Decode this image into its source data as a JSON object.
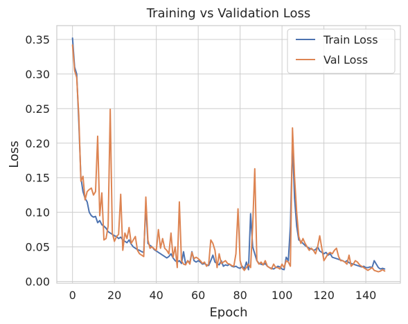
{
  "chart_data": {
    "type": "line",
    "title": "Training vs Validation Loss",
    "xlabel": "Epoch",
    "ylabel": "Loss",
    "xlim": [
      -7.5,
      156.5
    ],
    "ylim": [
      -0.0025,
      0.37
    ],
    "xticks": [
      0,
      20,
      40,
      60,
      80,
      100,
      120,
      140
    ],
    "yticks": [
      0.0,
      0.05,
      0.1,
      0.15,
      0.2,
      0.25,
      0.3,
      0.35
    ],
    "ytick_labels": [
      "0.00",
      "0.05",
      "0.10",
      "0.15",
      "0.20",
      "0.25",
      "0.30",
      "0.35"
    ],
    "grid": true,
    "legend_position": "top-right",
    "series": [
      {
        "name": "Train Loss",
        "color": "#4c72b0",
        "x": [
          0,
          1,
          2,
          3,
          4,
          5,
          6,
          7,
          8,
          9,
          10,
          11,
          12,
          13,
          14,
          15,
          16,
          17,
          18,
          19,
          20,
          21,
          22,
          23,
          24,
          25,
          26,
          27,
          28,
          29,
          30,
          31,
          32,
          33,
          34,
          35,
          36,
          37,
          38,
          39,
          40,
          41,
          42,
          43,
          44,
          45,
          46,
          47,
          48,
          49,
          50,
          51,
          52,
          53,
          54,
          55,
          56,
          57,
          58,
          59,
          60,
          61,
          62,
          63,
          64,
          65,
          66,
          67,
          68,
          69,
          70,
          71,
          72,
          73,
          74,
          75,
          76,
          77,
          78,
          79,
          80,
          81,
          82,
          83,
          84,
          85,
          86,
          87,
          88,
          89,
          90,
          91,
          92,
          93,
          94,
          95,
          96,
          97,
          98,
          99,
          100,
          101,
          102,
          103,
          104,
          105,
          106,
          107,
          108,
          109,
          110,
          111,
          112,
          113,
          114,
          115,
          116,
          117,
          118,
          119,
          120,
          121,
          122,
          123,
          124,
          125,
          126,
          127,
          128,
          129,
          130,
          131,
          132,
          133,
          134,
          135,
          136,
          137,
          138,
          139,
          140,
          141,
          142,
          143,
          144,
          145,
          146,
          147,
          148,
          149
        ],
        "values": [
          0.352,
          0.31,
          0.3,
          0.23,
          0.15,
          0.13,
          0.12,
          0.115,
          0.1,
          0.095,
          0.093,
          0.094,
          0.085,
          0.088,
          0.082,
          0.08,
          0.077,
          0.072,
          0.07,
          0.068,
          0.066,
          0.065,
          0.062,
          0.064,
          0.06,
          0.058,
          0.056,
          0.06,
          0.054,
          0.05,
          0.048,
          0.046,
          0.045,
          0.043,
          0.042,
          0.11,
          0.055,
          0.052,
          0.05,
          0.046,
          0.044,
          0.042,
          0.04,
          0.038,
          0.036,
          0.034,
          0.036,
          0.04,
          0.034,
          0.03,
          0.028,
          0.03,
          0.026,
          0.043,
          0.025,
          0.03,
          0.027,
          0.043,
          0.03,
          0.028,
          0.03,
          0.028,
          0.025,
          0.026,
          0.024,
          0.023,
          0.03,
          0.038,
          0.028,
          0.026,
          0.024,
          0.03,
          0.022,
          0.024,
          0.023,
          0.025,
          0.022,
          0.021,
          0.022,
          0.02,
          0.019,
          0.022,
          0.018,
          0.028,
          0.017,
          0.098,
          0.05,
          0.04,
          0.03,
          0.026,
          0.025,
          0.024,
          0.026,
          0.022,
          0.02,
          0.019,
          0.018,
          0.02,
          0.022,
          0.021,
          0.018,
          0.017,
          0.035,
          0.03,
          0.08,
          0.201,
          0.12,
          0.08,
          0.06,
          0.058,
          0.055,
          0.052,
          0.05,
          0.048,
          0.047,
          0.045,
          0.046,
          0.05,
          0.044,
          0.042,
          0.04,
          0.042,
          0.038,
          0.04,
          0.035,
          0.034,
          0.033,
          0.032,
          0.031,
          0.03,
          0.028,
          0.03,
          0.027,
          0.026,
          0.025,
          0.024,
          0.023,
          0.022,
          0.021,
          0.022,
          0.02,
          0.02,
          0.021,
          0.02,
          0.03,
          0.025,
          0.02,
          0.018,
          0.019,
          0.018
        ]
      },
      {
        "name": "Val Loss",
        "color": "#dd8452",
        "x": [
          0,
          1,
          2,
          3,
          4,
          5,
          6,
          7,
          8,
          9,
          10,
          11,
          12,
          13,
          14,
          15,
          16,
          17,
          18,
          19,
          20,
          21,
          22,
          23,
          24,
          25,
          26,
          27,
          28,
          29,
          30,
          31,
          32,
          33,
          34,
          35,
          36,
          37,
          38,
          39,
          40,
          41,
          42,
          43,
          44,
          45,
          46,
          47,
          48,
          49,
          50,
          51,
          52,
          53,
          54,
          55,
          56,
          57,
          58,
          59,
          60,
          61,
          62,
          63,
          64,
          65,
          66,
          67,
          68,
          69,
          70,
          71,
          72,
          73,
          74,
          75,
          76,
          77,
          78,
          79,
          80,
          81,
          82,
          83,
          84,
          85,
          86,
          87,
          88,
          89,
          90,
          91,
          92,
          93,
          94,
          95,
          96,
          97,
          98,
          99,
          100,
          101,
          102,
          103,
          104,
          105,
          106,
          107,
          108,
          109,
          110,
          111,
          112,
          113,
          114,
          115,
          116,
          117,
          118,
          119,
          120,
          121,
          122,
          123,
          124,
          125,
          126,
          127,
          128,
          129,
          130,
          131,
          132,
          133,
          134,
          135,
          136,
          137,
          138,
          139,
          140,
          141,
          142,
          143,
          144,
          145,
          146,
          147,
          148,
          149
        ],
        "values": [
          0.342,
          0.305,
          0.295,
          0.24,
          0.145,
          0.152,
          0.118,
          0.13,
          0.133,
          0.135,
          0.125,
          0.13,
          0.21,
          0.095,
          0.128,
          0.06,
          0.062,
          0.08,
          0.249,
          0.07,
          0.058,
          0.065,
          0.068,
          0.126,
          0.045,
          0.07,
          0.062,
          0.078,
          0.055,
          0.06,
          0.065,
          0.045,
          0.04,
          0.038,
          0.036,
          0.122,
          0.06,
          0.048,
          0.05,
          0.047,
          0.045,
          0.075,
          0.048,
          0.062,
          0.048,
          0.045,
          0.04,
          0.07,
          0.035,
          0.05,
          0.02,
          0.115,
          0.03,
          0.025,
          0.024,
          0.03,
          0.025,
          0.042,
          0.033,
          0.035,
          0.033,
          0.03,
          0.026,
          0.028,
          0.022,
          0.025,
          0.06,
          0.055,
          0.045,
          0.02,
          0.04,
          0.026,
          0.028,
          0.03,
          0.026,
          0.025,
          0.023,
          0.022,
          0.04,
          0.105,
          0.03,
          0.02,
          0.016,
          0.02,
          0.025,
          0.02,
          0.08,
          0.163,
          0.03,
          0.025,
          0.028,
          0.024,
          0.03,
          0.022,
          0.02,
          0.018,
          0.025,
          0.02,
          0.02,
          0.018,
          0.025,
          0.02,
          0.03,
          0.028,
          0.022,
          0.222,
          0.15,
          0.1,
          0.065,
          0.055,
          0.062,
          0.055,
          0.05,
          0.045,
          0.048,
          0.045,
          0.04,
          0.05,
          0.066,
          0.048,
          0.03,
          0.035,
          0.04,
          0.042,
          0.04,
          0.045,
          0.048,
          0.036,
          0.03,
          0.03,
          0.028,
          0.025,
          0.038,
          0.022,
          0.025,
          0.03,
          0.028,
          0.024,
          0.022,
          0.02,
          0.018,
          0.016,
          0.018,
          0.02,
          0.016,
          0.015,
          0.014,
          0.015,
          0.017,
          0.015
        ]
      }
    ]
  }
}
